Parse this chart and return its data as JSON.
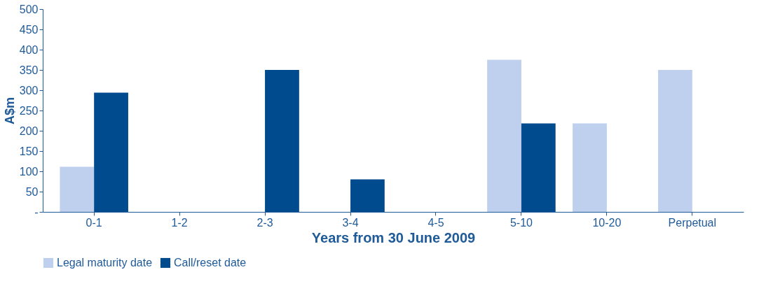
{
  "chart_data": {
    "type": "bar",
    "xlabel": "Years from 30 June 2009",
    "ylabel": "A$m",
    "categories": [
      "0-1",
      "1-2",
      "2-3",
      "3-4",
      "4-5",
      "5-10",
      "10-20",
      "Perpetual"
    ],
    "series": [
      {
        "name": "Legal maturity date",
        "color": "#bed0ee",
        "values": [
          111,
          0,
          0,
          0,
          0,
          375,
          218,
          350
        ]
      },
      {
        "name": "Call/reset date",
        "color": "#004b8d",
        "values": [
          294,
          0,
          350,
          80,
          0,
          218,
          0,
          0
        ]
      }
    ],
    "ylim": [
      0,
      500
    ],
    "yticks": [
      {
        "value": 0,
        "label": "-"
      },
      50,
      100,
      150,
      200,
      250,
      300,
      350,
      400,
      450,
      500
    ],
    "grid": false,
    "legend": "bottom"
  }
}
